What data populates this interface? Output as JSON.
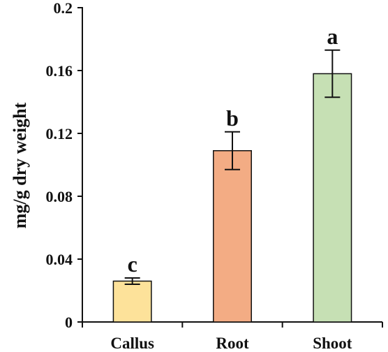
{
  "chart_data": {
    "type": "bar",
    "title": "",
    "xlabel": "",
    "ylabel": "mg/g  dry weight",
    "ylim": [
      0,
      0.2
    ],
    "yticks": [
      0,
      0.04,
      0.08,
      0.12,
      0.16,
      0.2
    ],
    "ytick_labels": [
      "0",
      "0.04",
      "0.08",
      "0.12",
      "0.16",
      "0.2"
    ],
    "categories": [
      "Callus",
      "Root",
      "Shoot"
    ],
    "values": [
      0.026,
      0.109,
      0.158
    ],
    "errors": [
      0.002,
      0.012,
      0.015
    ],
    "significance": [
      "c",
      "b",
      "a"
    ],
    "colors": [
      "#fde29a",
      "#f3ac84",
      "#c6e0b4"
    ],
    "grid": false
  }
}
